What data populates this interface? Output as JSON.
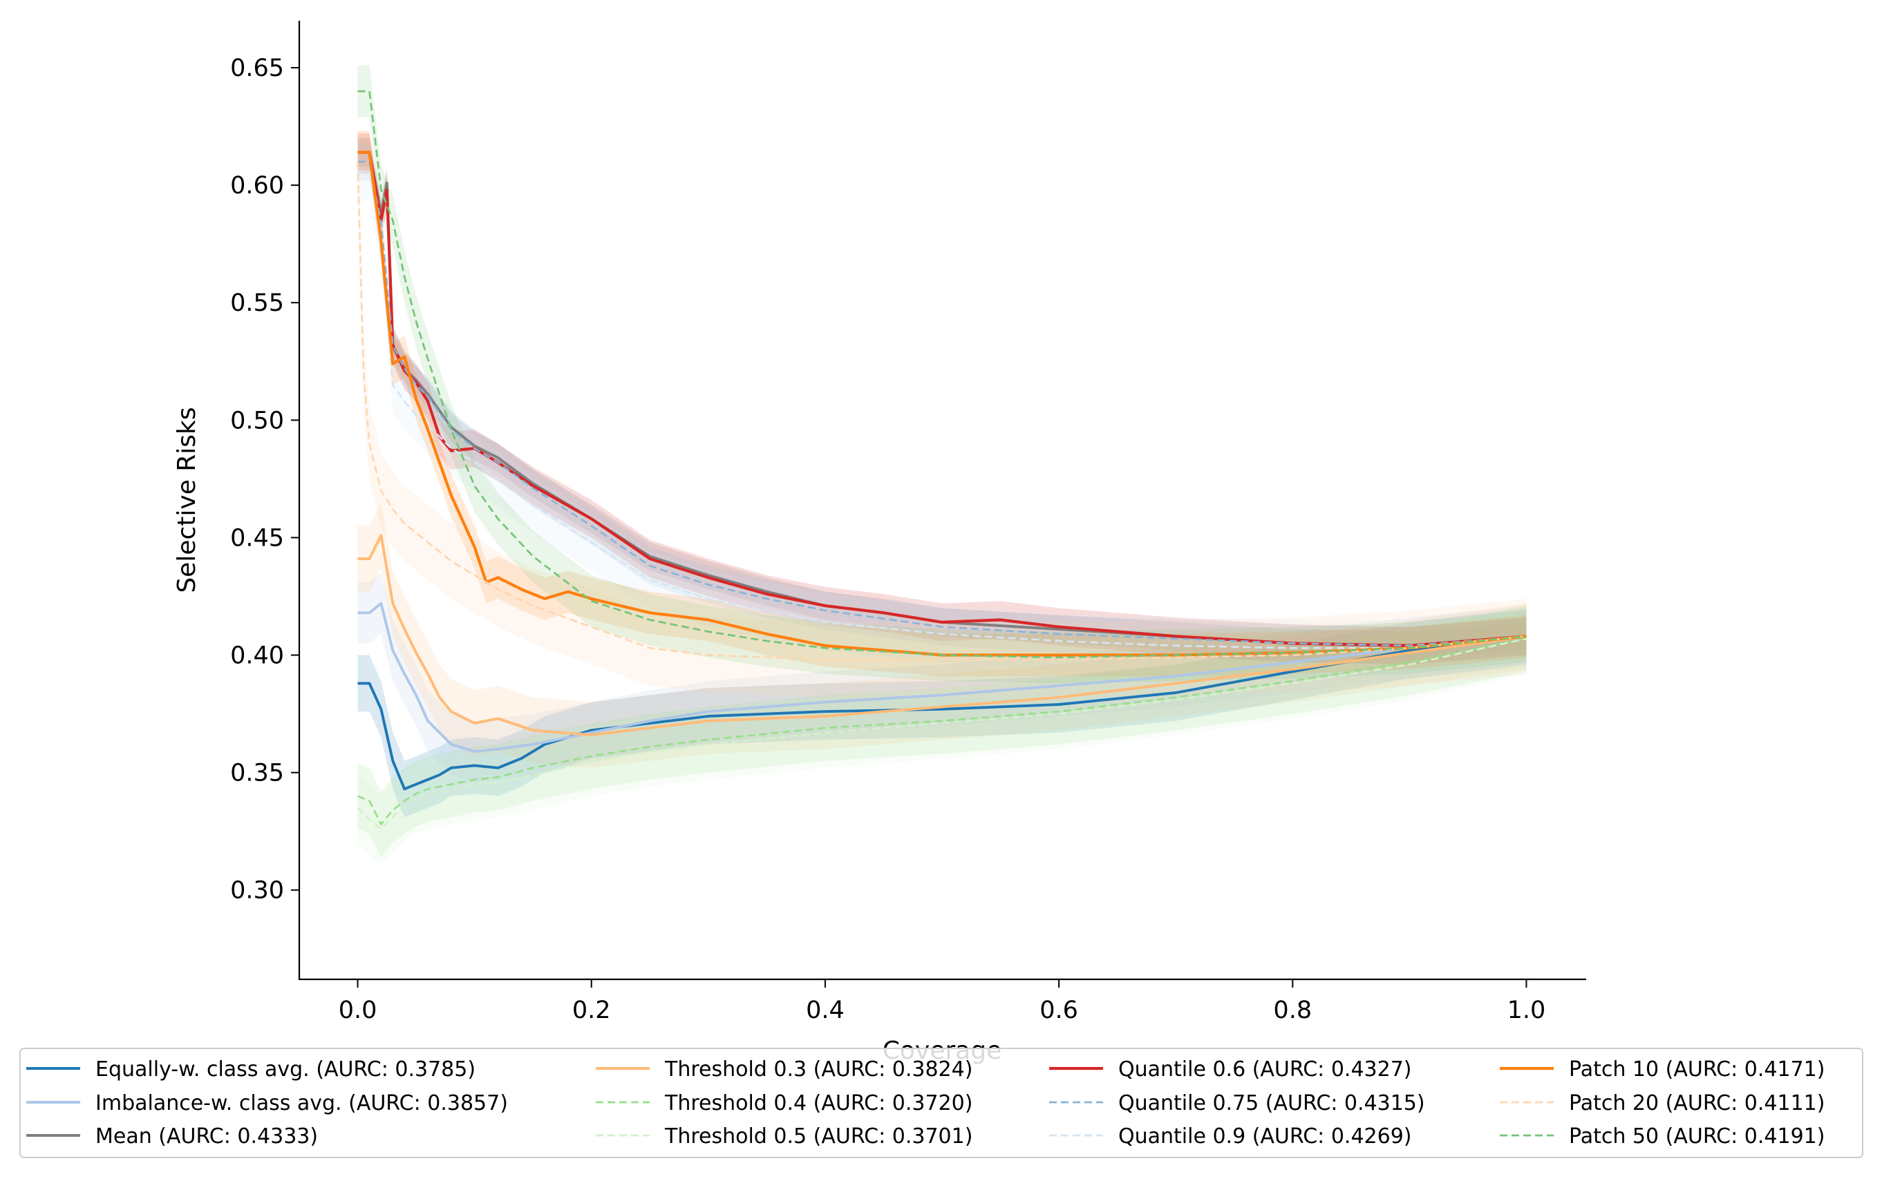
{
  "chart_data": {
    "type": "line",
    "title": "",
    "xlabel": "Coverage",
    "ylabel": "Selective Risks",
    "xlim": [
      -0.05,
      1.05
    ],
    "ylim": [
      0.262,
      0.67
    ],
    "xticks": [
      0.0,
      0.2,
      0.4,
      0.6,
      0.8,
      1.0
    ],
    "xtick_labels": [
      "0.0",
      "0.2",
      "0.4",
      "0.6",
      "0.8",
      "1.0"
    ],
    "yticks": [
      0.3,
      0.35,
      0.4,
      0.45,
      0.5,
      0.55,
      0.6,
      0.65
    ],
    "ytick_labels": [
      "0.30",
      "0.35",
      "0.40",
      "0.45",
      "0.50",
      "0.55",
      "0.60",
      "0.65"
    ],
    "grid": false,
    "legend_placement": "below plot, 4 columns",
    "series": [
      {
        "name": "Equally-w. class avg. (AURC: 0.3785)",
        "color": "#1f77b4",
        "dash": "solid",
        "width": 2.6,
        "band": 0.012,
        "x": [
          0.0,
          0.01,
          0.02,
          0.03,
          0.04,
          0.05,
          0.06,
          0.07,
          0.08,
          0.1,
          0.12,
          0.14,
          0.16,
          0.2,
          0.25,
          0.3,
          0.35,
          0.4,
          0.5,
          0.6,
          0.7,
          0.8,
          0.9,
          1.0
        ],
        "y": [
          0.388,
          0.388,
          0.377,
          0.355,
          0.343,
          0.345,
          0.347,
          0.349,
          0.352,
          0.353,
          0.352,
          0.356,
          0.362,
          0.368,
          0.371,
          0.374,
          0.375,
          0.376,
          0.377,
          0.379,
          0.384,
          0.393,
          0.402,
          0.408
        ]
      },
      {
        "name": "Imbalance-w. class avg. (AURC: 0.3857)",
        "color": "#aec7e8",
        "dash": "solid",
        "width": 2.6,
        "band": 0.013,
        "x": [
          0.0,
          0.01,
          0.02,
          0.03,
          0.04,
          0.05,
          0.06,
          0.08,
          0.1,
          0.12,
          0.15,
          0.2,
          0.25,
          0.3,
          0.4,
          0.5,
          0.6,
          0.7,
          0.8,
          0.9,
          1.0
        ],
        "y": [
          0.418,
          0.418,
          0.422,
          0.402,
          0.392,
          0.383,
          0.372,
          0.362,
          0.359,
          0.36,
          0.362,
          0.367,
          0.372,
          0.376,
          0.38,
          0.383,
          0.387,
          0.391,
          0.397,
          0.403,
          0.408
        ]
      },
      {
        "name": "Mean (AURC: 0.4333)",
        "color": "#7f7f7f",
        "dash": "solid",
        "width": 2.6,
        "band": 0.006,
        "x": [
          0.0,
          0.01,
          0.02,
          0.025,
          0.03,
          0.04,
          0.05,
          0.06,
          0.08,
          0.1,
          0.12,
          0.15,
          0.2,
          0.25,
          0.3,
          0.35,
          0.4,
          0.45,
          0.5,
          0.6,
          0.7,
          0.8,
          0.9,
          1.0
        ],
        "y": [
          0.614,
          0.614,
          0.588,
          0.601,
          0.532,
          0.522,
          0.517,
          0.511,
          0.497,
          0.489,
          0.484,
          0.473,
          0.458,
          0.442,
          0.434,
          0.427,
          0.421,
          0.418,
          0.414,
          0.411,
          0.408,
          0.405,
          0.404,
          0.408
        ]
      },
      {
        "name": "Threshold 0.3 (AURC: 0.3824)",
        "color": "#ffbb78",
        "dash": "solid",
        "width": 2.6,
        "band": 0.014,
        "x": [
          0.0,
          0.01,
          0.02,
          0.03,
          0.04,
          0.05,
          0.06,
          0.07,
          0.08,
          0.1,
          0.12,
          0.15,
          0.2,
          0.25,
          0.3,
          0.4,
          0.5,
          0.6,
          0.7,
          0.8,
          0.9,
          1.0
        ],
        "y": [
          0.441,
          0.441,
          0.451,
          0.422,
          0.411,
          0.401,
          0.392,
          0.382,
          0.376,
          0.371,
          0.373,
          0.368,
          0.366,
          0.369,
          0.372,
          0.374,
          0.378,
          0.382,
          0.388,
          0.394,
          0.401,
          0.408
        ]
      },
      {
        "name": "Threshold 0.4 (AURC: 0.3720)",
        "color": "#98df8a",
        "dash": "dashed",
        "width": 1.8,
        "band": 0.014,
        "x": [
          0.0,
          0.01,
          0.02,
          0.03,
          0.04,
          0.05,
          0.06,
          0.08,
          0.1,
          0.12,
          0.15,
          0.2,
          0.25,
          0.3,
          0.4,
          0.5,
          0.6,
          0.7,
          0.8,
          0.9,
          1.0
        ],
        "y": [
          0.34,
          0.338,
          0.328,
          0.334,
          0.338,
          0.341,
          0.343,
          0.345,
          0.347,
          0.348,
          0.352,
          0.357,
          0.361,
          0.364,
          0.369,
          0.372,
          0.376,
          0.382,
          0.389,
          0.397,
          0.407
        ]
      },
      {
        "name": "Threshold 0.5 (AURC: 0.3701)",
        "color": "#d4f0cc",
        "dash": "dashed",
        "width": 1.8,
        "band": 0.015,
        "x": [
          0.0,
          0.01,
          0.02,
          0.03,
          0.04,
          0.05,
          0.06,
          0.08,
          0.1,
          0.12,
          0.15,
          0.2,
          0.25,
          0.3,
          0.4,
          0.5,
          0.6,
          0.7,
          0.8,
          0.9,
          1.0
        ],
        "y": [
          0.335,
          0.33,
          0.326,
          0.331,
          0.336,
          0.339,
          0.341,
          0.343,
          0.345,
          0.346,
          0.349,
          0.355,
          0.359,
          0.362,
          0.367,
          0.371,
          0.375,
          0.381,
          0.388,
          0.396,
          0.407
        ]
      },
      {
        "name": "Quantile 0.6 (AURC: 0.4327)",
        "color": "#d62728",
        "dash": "solid",
        "width": 2.8,
        "band": 0.008,
        "x": [
          0.0,
          0.01,
          0.02,
          0.025,
          0.03,
          0.04,
          0.05,
          0.06,
          0.07,
          0.08,
          0.1,
          0.12,
          0.15,
          0.2,
          0.25,
          0.3,
          0.35,
          0.4,
          0.45,
          0.5,
          0.55,
          0.6,
          0.7,
          0.8,
          0.9,
          1.0
        ],
        "y": [
          0.614,
          0.614,
          0.585,
          0.598,
          0.532,
          0.521,
          0.516,
          0.508,
          0.493,
          0.487,
          0.488,
          0.482,
          0.472,
          0.458,
          0.441,
          0.433,
          0.426,
          0.421,
          0.418,
          0.414,
          0.415,
          0.412,
          0.408,
          0.405,
          0.404,
          0.408
        ]
      },
      {
        "name": "Quantile 0.75 (AURC: 0.4315)",
        "color": "#89b4d9",
        "dash": "dashed",
        "width": 1.8,
        "band": 0.008,
        "x": [
          0.0,
          0.01,
          0.02,
          0.03,
          0.04,
          0.05,
          0.06,
          0.08,
          0.1,
          0.12,
          0.15,
          0.2,
          0.25,
          0.3,
          0.35,
          0.4,
          0.5,
          0.6,
          0.7,
          0.8,
          0.9,
          1.0
        ],
        "y": [
          0.61,
          0.61,
          0.584,
          0.532,
          0.522,
          0.515,
          0.51,
          0.496,
          0.488,
          0.482,
          0.471,
          0.455,
          0.438,
          0.43,
          0.424,
          0.419,
          0.412,
          0.409,
          0.407,
          0.405,
          0.404,
          0.408
        ]
      },
      {
        "name": "Quantile 0.9 (AURC: 0.4269)",
        "color": "#d6e4f1",
        "dash": "dashed",
        "width": 1.8,
        "band": 0.012,
        "x": [
          0.0,
          0.01,
          0.02,
          0.03,
          0.04,
          0.05,
          0.06,
          0.08,
          0.1,
          0.12,
          0.15,
          0.2,
          0.25,
          0.3,
          0.35,
          0.4,
          0.5,
          0.6,
          0.7,
          0.8,
          0.9,
          1.0
        ],
        "y": [
          0.606,
          0.606,
          0.575,
          0.515,
          0.508,
          0.502,
          0.498,
          0.488,
          0.482,
          0.475,
          0.464,
          0.448,
          0.432,
          0.424,
          0.419,
          0.414,
          0.409,
          0.406,
          0.404,
          0.403,
          0.403,
          0.408
        ]
      },
      {
        "name": "Patch 10 (AURC: 0.4171)",
        "color": "#ff7f0e",
        "dash": "solid",
        "width": 2.8,
        "band": 0.009,
        "x": [
          0.0,
          0.01,
          0.02,
          0.03,
          0.04,
          0.05,
          0.06,
          0.07,
          0.08,
          0.1,
          0.11,
          0.12,
          0.14,
          0.16,
          0.18,
          0.2,
          0.25,
          0.3,
          0.35,
          0.4,
          0.5,
          0.6,
          0.7,
          0.8,
          0.9,
          1.0
        ],
        "y": [
          0.614,
          0.614,
          0.576,
          0.524,
          0.527,
          0.509,
          0.496,
          0.482,
          0.468,
          0.446,
          0.431,
          0.433,
          0.428,
          0.424,
          0.427,
          0.424,
          0.418,
          0.415,
          0.409,
          0.404,
          0.4,
          0.4,
          0.4,
          0.401,
          0.403,
          0.408
        ]
      },
      {
        "name": "Patch 20 (AURC: 0.4111)",
        "color": "#ffd6b0",
        "dash": "dashed",
        "width": 1.8,
        "band": 0.016,
        "x": [
          0.0,
          0.005,
          0.01,
          0.02,
          0.03,
          0.04,
          0.05,
          0.06,
          0.08,
          0.1,
          0.12,
          0.15,
          0.2,
          0.25,
          0.3,
          0.4,
          0.5,
          0.6,
          0.7,
          0.8,
          0.9,
          1.0
        ],
        "y": [
          0.61,
          0.52,
          0.49,
          0.47,
          0.462,
          0.456,
          0.452,
          0.448,
          0.44,
          0.434,
          0.428,
          0.421,
          0.412,
          0.403,
          0.4,
          0.398,
          0.398,
          0.398,
          0.399,
          0.4,
          0.403,
          0.408
        ]
      },
      {
        "name": "Patch 50 (AURC: 0.4191)",
        "color": "#74c476",
        "dash": "dashed",
        "width": 1.8,
        "band": 0.011,
        "x": [
          0.0,
          0.01,
          0.02,
          0.03,
          0.04,
          0.05,
          0.06,
          0.08,
          0.1,
          0.12,
          0.15,
          0.2,
          0.25,
          0.3,
          0.35,
          0.4,
          0.5,
          0.6,
          0.7,
          0.8,
          0.9,
          1.0
        ],
        "y": [
          0.64,
          0.64,
          0.598,
          0.585,
          0.561,
          0.542,
          0.526,
          0.496,
          0.472,
          0.458,
          0.442,
          0.423,
          0.415,
          0.41,
          0.406,
          0.403,
          0.4,
          0.399,
          0.4,
          0.401,
          0.403,
          0.408
        ]
      }
    ]
  }
}
